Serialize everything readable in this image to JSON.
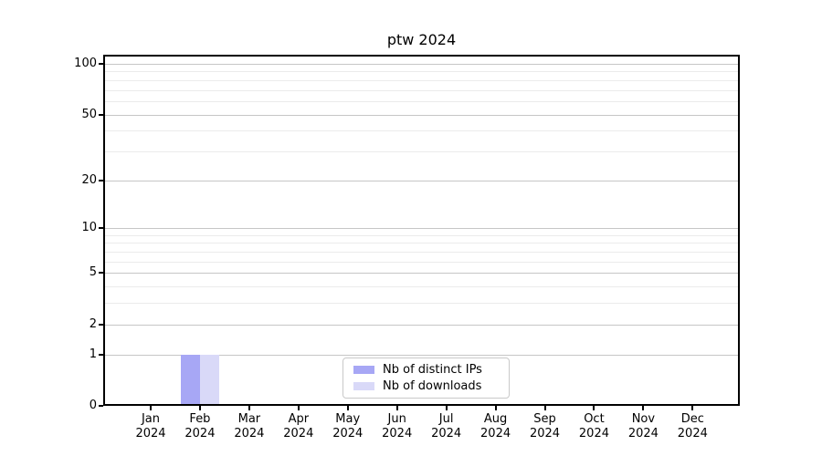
{
  "chart_data": {
    "type": "bar",
    "title": "ptw 2024",
    "categories": [
      {
        "month": "Jan",
        "year": "2024"
      },
      {
        "month": "Feb",
        "year": "2024"
      },
      {
        "month": "Mar",
        "year": "2024"
      },
      {
        "month": "Apr",
        "year": "2024"
      },
      {
        "month": "May",
        "year": "2024"
      },
      {
        "month": "Jun",
        "year": "2024"
      },
      {
        "month": "Jul",
        "year": "2024"
      },
      {
        "month": "Aug",
        "year": "2024"
      },
      {
        "month": "Sep",
        "year": "2024"
      },
      {
        "month": "Oct",
        "year": "2024"
      },
      {
        "month": "Nov",
        "year": "2024"
      },
      {
        "month": "Dec",
        "year": "2024"
      }
    ],
    "series": [
      {
        "name": "Nb of distinct IPs",
        "color": "#a7a7f5",
        "values": [
          0,
          1,
          0,
          0,
          0,
          0,
          0,
          0,
          0,
          0,
          0,
          0
        ]
      },
      {
        "name": "Nb of downloads",
        "color": "#d9d9f8",
        "values": [
          0,
          1,
          0,
          0,
          0,
          0,
          0,
          0,
          0,
          0,
          0,
          0
        ]
      }
    ],
    "y_axis": {
      "scale": "log1p",
      "ylim": [
        0,
        116
      ],
      "ticks": [
        {
          "value": 0,
          "label": "0"
        },
        {
          "value": 1,
          "label": "1"
        },
        {
          "value": 2,
          "label": "2"
        },
        {
          "value": 5,
          "label": "5"
        },
        {
          "value": 10,
          "label": "10"
        },
        {
          "value": 20,
          "label": "20"
        },
        {
          "value": 50,
          "label": "50"
        },
        {
          "value": 100,
          "label": "100"
        }
      ],
      "minor_gridline_values": [
        3,
        4,
        6,
        7,
        8,
        9,
        30,
        40,
        60,
        70,
        80,
        90
      ]
    },
    "grid": true,
    "legend": {
      "position": "bottom-center"
    },
    "colors": {
      "background": "#ffffff",
      "spine": "#000000",
      "grid_major": "#c6c6c6",
      "grid_minor": "#ebebeb"
    }
  }
}
